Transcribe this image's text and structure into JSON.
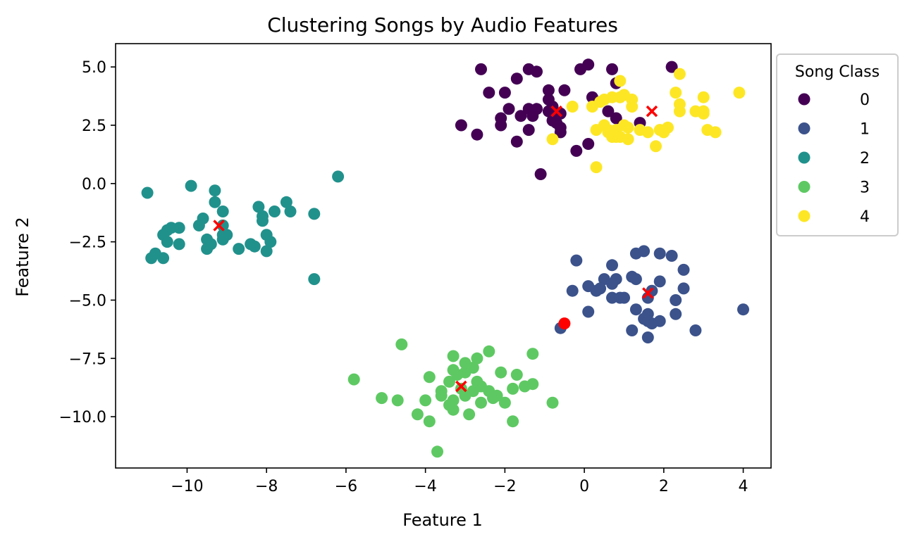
{
  "chart_data": {
    "type": "scatter",
    "title": "Clustering Songs by Audio Features",
    "xlabel": "Feature 1",
    "ylabel": "Feature 2",
    "xlim": [
      -11.8,
      4.7
    ],
    "ylim": [
      -12.2,
      6.0
    ],
    "xticks": [
      -10,
      -8,
      -6,
      -4,
      -2,
      0,
      2,
      4
    ],
    "xtick_labels": [
      "−10",
      "−8",
      "−6",
      "−4",
      "−2",
      "0",
      "2",
      "4"
    ],
    "yticks": [
      5.0,
      2.5,
      0.0,
      -2.5,
      -5.0,
      -7.5,
      -10.0
    ],
    "ytick_labels": [
      "5.0",
      "2.5",
      "0.0",
      "−2.5",
      "−5.0",
      "−7.5",
      "−10.0"
    ],
    "grid": false,
    "legend": {
      "title": "Song Class",
      "placement": "outside-upper-right"
    },
    "series": [
      {
        "name": "0",
        "color": "#440154",
        "points": [
          [
            -2.6,
            4.9
          ],
          [
            -1.4,
            4.9
          ],
          [
            -1.2,
            4.8
          ],
          [
            0.1,
            5.1
          ],
          [
            0.7,
            4.9
          ],
          [
            2.2,
            5.0
          ],
          [
            -0.1,
            4.9
          ],
          [
            -2.4,
            3.9
          ],
          [
            -2.0,
            3.9
          ],
          [
            -1.7,
            4.5
          ],
          [
            -0.9,
            4.0
          ],
          [
            -0.5,
            4.0
          ],
          [
            0.8,
            4.3
          ],
          [
            0.2,
            3.7
          ],
          [
            -0.9,
            3.6
          ],
          [
            -1.4,
            3.2
          ],
          [
            -1.2,
            3.2
          ],
          [
            -1.9,
            3.2
          ],
          [
            -0.9,
            3.1
          ],
          [
            -0.8,
            3.3
          ],
          [
            -0.6,
            3.0
          ],
          [
            -1.6,
            2.9
          ],
          [
            -2.1,
            2.8
          ],
          [
            -1.3,
            2.9
          ],
          [
            -0.8,
            2.7
          ],
          [
            -0.7,
            2.6
          ],
          [
            0.6,
            3.1
          ],
          [
            0.8,
            2.8
          ],
          [
            -3.1,
            2.5
          ],
          [
            -2.7,
            2.1
          ],
          [
            -2.1,
            2.5
          ],
          [
            -1.4,
            2.3
          ],
          [
            -0.6,
            2.4
          ],
          [
            -0.6,
            2.2
          ],
          [
            1.4,
            2.6
          ],
          [
            -1.7,
            1.8
          ],
          [
            0.1,
            1.7
          ],
          [
            -0.2,
            1.4
          ],
          [
            -1.1,
            0.4
          ]
        ]
      },
      {
        "name": "1",
        "color": "#3b528b",
        "points": [
          [
            1.3,
            -3.0
          ],
          [
            1.5,
            -2.9
          ],
          [
            1.9,
            -3.0
          ],
          [
            2.2,
            -3.1
          ],
          [
            2.5,
            -3.7
          ],
          [
            -0.2,
            -3.3
          ],
          [
            0.7,
            -3.5
          ],
          [
            1.2,
            -4.0
          ],
          [
            1.3,
            -4.1
          ],
          [
            1.9,
            -4.2
          ],
          [
            0.5,
            -4.1
          ],
          [
            0.8,
            -4.1
          ],
          [
            0.7,
            -4.3
          ],
          [
            0.1,
            -4.4
          ],
          [
            -0.3,
            -4.6
          ],
          [
            0.3,
            -4.6
          ],
          [
            0.4,
            -4.5
          ],
          [
            1.7,
            -4.6
          ],
          [
            2.5,
            -4.5
          ],
          [
            0.7,
            -4.9
          ],
          [
            0.9,
            -4.9
          ],
          [
            1.0,
            -4.9
          ],
          [
            1.6,
            -4.9
          ],
          [
            2.3,
            -5.0
          ],
          [
            0.1,
            -5.5
          ],
          [
            1.3,
            -5.4
          ],
          [
            1.6,
            -5.6
          ],
          [
            2.3,
            -5.6
          ],
          [
            1.6,
            -5.9
          ],
          [
            1.7,
            -6.0
          ],
          [
            1.9,
            -5.9
          ],
          [
            1.2,
            -6.3
          ],
          [
            1.6,
            -6.6
          ],
          [
            2.8,
            -6.3
          ],
          [
            -0.6,
            -6.2
          ],
          [
            4.0,
            -5.4
          ],
          [
            1.5,
            -5.8
          ]
        ]
      },
      {
        "name": "2",
        "color": "#21918c",
        "points": [
          [
            -11.0,
            -0.4
          ],
          [
            -9.9,
            -0.1
          ],
          [
            -9.3,
            -0.3
          ],
          [
            -9.3,
            -0.8
          ],
          [
            -6.2,
            0.3
          ],
          [
            -8.2,
            -1.0
          ],
          [
            -7.5,
            -0.8
          ],
          [
            -7.4,
            -1.2
          ],
          [
            -7.8,
            -1.2
          ],
          [
            -6.8,
            -1.3
          ],
          [
            -9.1,
            -1.2
          ],
          [
            -9.6,
            -1.5
          ],
          [
            -8.1,
            -1.4
          ],
          [
            -8.1,
            -1.6
          ],
          [
            -9.7,
            -1.8
          ],
          [
            -9.1,
            -1.8
          ],
          [
            -10.4,
            -1.9
          ],
          [
            -10.2,
            -1.9
          ],
          [
            -10.5,
            -2.0
          ],
          [
            -10.6,
            -2.2
          ],
          [
            -9.1,
            -2.2
          ],
          [
            -9.0,
            -2.2
          ],
          [
            -8.0,
            -2.2
          ],
          [
            -9.5,
            -2.4
          ],
          [
            -9.1,
            -2.4
          ],
          [
            -9.4,
            -2.6
          ],
          [
            -10.5,
            -2.5
          ],
          [
            -10.2,
            -2.6
          ],
          [
            -8.4,
            -2.6
          ],
          [
            -8.3,
            -2.7
          ],
          [
            -7.9,
            -2.5
          ],
          [
            -9.5,
            -2.8
          ],
          [
            -8.7,
            -2.8
          ],
          [
            -8.0,
            -2.9
          ],
          [
            -10.8,
            -3.0
          ],
          [
            -10.9,
            -3.2
          ],
          [
            -10.6,
            -3.2
          ],
          [
            -6.8,
            -4.1
          ]
        ]
      },
      {
        "name": "3",
        "color": "#5ec962",
        "points": [
          [
            -4.6,
            -6.9
          ],
          [
            -2.4,
            -7.2
          ],
          [
            -2.7,
            -7.5
          ],
          [
            -3.3,
            -7.4
          ],
          [
            -3.0,
            -7.7
          ],
          [
            -2.8,
            -7.9
          ],
          [
            -1.3,
            -7.3
          ],
          [
            -3.9,
            -8.3
          ],
          [
            -3.3,
            -8.0
          ],
          [
            -3.2,
            -8.2
          ],
          [
            -3.0,
            -8.1
          ],
          [
            -2.1,
            -8.1
          ],
          [
            -1.7,
            -8.2
          ],
          [
            -5.8,
            -8.4
          ],
          [
            -3.4,
            -8.5
          ],
          [
            -2.7,
            -8.5
          ],
          [
            -2.6,
            -8.7
          ],
          [
            -1.3,
            -8.6
          ],
          [
            -1.5,
            -8.7
          ],
          [
            -3.1,
            -8.8
          ],
          [
            -2.8,
            -8.9
          ],
          [
            -2.4,
            -8.9
          ],
          [
            -2.2,
            -9.1
          ],
          [
            -1.8,
            -8.8
          ],
          [
            -3.6,
            -8.9
          ],
          [
            -3.6,
            -9.1
          ],
          [
            -3.3,
            -9.3
          ],
          [
            -3.0,
            -9.1
          ],
          [
            -4.0,
            -9.3
          ],
          [
            -5.1,
            -9.2
          ],
          [
            -4.7,
            -9.3
          ],
          [
            -2.6,
            -9.4
          ],
          [
            -2.0,
            -9.4
          ],
          [
            -0.8,
            -9.4
          ],
          [
            -3.4,
            -9.5
          ],
          [
            -3.3,
            -9.7
          ],
          [
            -2.9,
            -9.9
          ],
          [
            -4.2,
            -9.9
          ],
          [
            -3.9,
            -10.2
          ],
          [
            -1.8,
            -10.2
          ],
          [
            -3.7,
            -11.5
          ],
          [
            -2.3,
            -9.2
          ]
        ]
      },
      {
        "name": "4",
        "color": "#fde725",
        "points": [
          [
            2.4,
            4.7
          ],
          [
            0.9,
            4.4
          ],
          [
            3.9,
            3.9
          ],
          [
            2.3,
            3.9
          ],
          [
            3.0,
            3.7
          ],
          [
            0.5,
            3.6
          ],
          [
            0.7,
            3.7
          ],
          [
            0.9,
            3.7
          ],
          [
            1.0,
            3.8
          ],
          [
            1.2,
            3.6
          ],
          [
            0.4,
            3.5
          ],
          [
            2.4,
            3.4
          ],
          [
            -0.3,
            3.3
          ],
          [
            0.2,
            3.3
          ],
          [
            1.2,
            3.3
          ],
          [
            2.4,
            3.1
          ],
          [
            2.8,
            3.1
          ],
          [
            3.0,
            3.0
          ],
          [
            3.0,
            3.1
          ],
          [
            0.5,
            2.5
          ],
          [
            0.6,
            2.3
          ],
          [
            0.8,
            2.3
          ],
          [
            1.0,
            2.5
          ],
          [
            1.1,
            2.4
          ],
          [
            1.4,
            2.3
          ],
          [
            3.1,
            2.3
          ],
          [
            3.3,
            2.2
          ],
          [
            0.3,
            2.3
          ],
          [
            0.6,
            2.2
          ],
          [
            0.8,
            2.0
          ],
          [
            0.9,
            2.0
          ],
          [
            1.1,
            1.9
          ],
          [
            1.6,
            2.2
          ],
          [
            1.9,
            2.3
          ],
          [
            2.0,
            2.2
          ],
          [
            2.1,
            2.4
          ],
          [
            1.8,
            1.6
          ],
          [
            -0.8,
            1.9
          ],
          [
            0.3,
            0.7
          ],
          [
            0.7,
            2.0
          ]
        ]
      }
    ],
    "centroids": {
      "color": "#ff0000",
      "marker": "x",
      "points": [
        [
          -9.2,
          -1.8
        ],
        [
          -0.7,
          3.1
        ],
        [
          1.7,
          3.1
        ],
        [
          1.6,
          -4.7
        ],
        [
          -3.1,
          -8.7
        ]
      ]
    },
    "highlight": {
      "color": "#ff0000",
      "point": [
        -0.5,
        -6.0
      ]
    }
  }
}
